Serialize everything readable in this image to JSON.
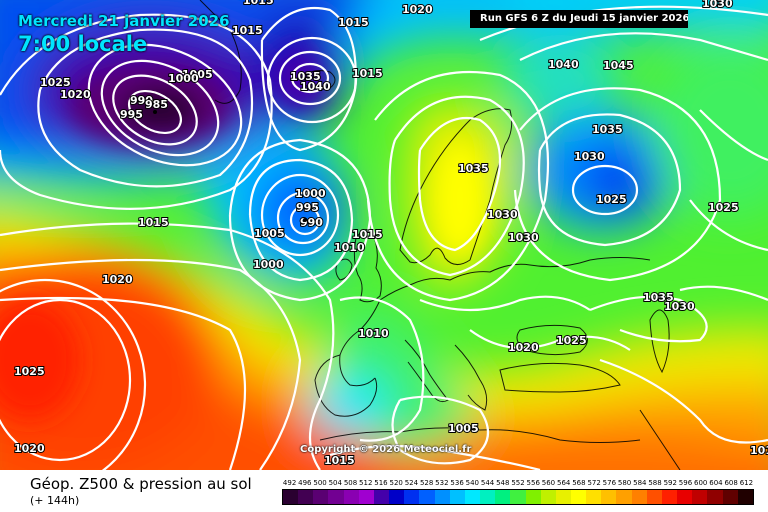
{
  "header": {
    "valid_date": "Mercredi 21 janvier 2026",
    "local_time": "7:00 locale",
    "run_info": "Run GFS 6 Z du Jeudi 15 janvier 2026"
  },
  "copyright": "Copyright © 2026 Meteociel.fr",
  "legend": {
    "title": "Géop. Z500 & pression au sol",
    "subtitle": "(+ 144h)",
    "scale_values": [
      "492",
      "496",
      "500",
      "504",
      "508",
      "512",
      "516",
      "520",
      "524",
      "528",
      "532",
      "536",
      "540",
      "544",
      "548",
      "552",
      "556",
      "560",
      "564",
      "568",
      "572",
      "576",
      "580",
      "584",
      "588",
      "592",
      "596",
      "600",
      "604",
      "608",
      "612"
    ],
    "scale_colors": [
      "#2a0030",
      "#420052",
      "#5a0072",
      "#720092",
      "#8a00b2",
      "#a000d0",
      "#4400aa",
      "#0000c8",
      "#0030f0",
      "#0060ff",
      "#0090ff",
      "#00c0ff",
      "#00e8ff",
      "#00f0c0",
      "#00f080",
      "#40f040",
      "#80f000",
      "#c0f000",
      "#e8f000",
      "#ffff00",
      "#ffe000",
      "#ffc000",
      "#ffa000",
      "#ff8000",
      "#ff5000",
      "#ff2000",
      "#e80000",
      "#c00000",
      "#900000",
      "#600000",
      "#200000"
    ]
  },
  "pressure_labels": [
    {
      "text": "1015",
      "id": "p1015-nw"
    },
    {
      "text": "1025",
      "id": "p1025-nw"
    },
    {
      "text": "1020",
      "id": "p1020-nw"
    },
    {
      "text": "1005",
      "id": "p1005-icel"
    },
    {
      "text": "1000",
      "id": "p1000-icel"
    },
    {
      "text": "990",
      "id": "p990-icel"
    },
    {
      "text": "985",
      "id": "p985-icel"
    },
    {
      "text": "995",
      "id": "p995-icel"
    },
    {
      "text": "1015",
      "id": "p1015-top"
    },
    {
      "text": "1015",
      "id": "p1015-top2"
    },
    {
      "text": "1020",
      "id": "p1020-top"
    },
    {
      "text": "1035",
      "id": "p1035-greenl"
    },
    {
      "text": "1040",
      "id": "p1040-greenl"
    },
    {
      "text": "1015",
      "id": "p1015-greenl"
    },
    {
      "text": "1040",
      "id": "p1040-ne"
    },
    {
      "text": "1045",
      "id": "p1045-ne"
    },
    {
      "text": "1030",
      "id": "p1030-top-right"
    },
    {
      "text": "1035",
      "id": "p1035-russia"
    },
    {
      "text": "1030",
      "id": "p1030-russia"
    },
    {
      "text": "1025",
      "id": "p1025-russia"
    },
    {
      "text": "1025",
      "id": "p1025-east"
    },
    {
      "text": "1035",
      "id": "p1035-scand"
    },
    {
      "text": "1030",
      "id": "p1030-scand"
    },
    {
      "text": "1030",
      "id": "p1030-baltic"
    },
    {
      "text": "1000",
      "id": "p1000-low"
    },
    {
      "text": "995",
      "id": "p995-low"
    },
    {
      "text": "990",
      "id": "p990-low"
    },
    {
      "text": "1005",
      "id": "p1005-low"
    },
    {
      "text": "1000",
      "id": "p1000-low2"
    },
    {
      "text": "1010",
      "id": "p1010-uk"
    },
    {
      "text": "1015",
      "id": "p1015-uk"
    },
    {
      "text": "1015",
      "id": "p1015-atl"
    },
    {
      "text": "1020",
      "id": "p1020-atl"
    },
    {
      "text": "1025",
      "id": "p1025-sw"
    },
    {
      "text": "1020",
      "id": "p1020-sw"
    },
    {
      "text": "1010",
      "id": "p1010-france"
    },
    {
      "text": "1020",
      "id": "p1020-balkan"
    },
    {
      "text": "1025",
      "id": "p1025-balkan"
    },
    {
      "text": "1035",
      "id": "p1035-caspian"
    },
    {
      "text": "1030",
      "id": "p1030-caspian"
    },
    {
      "text": "1005",
      "id": "p1005-med"
    },
    {
      "text": "1015",
      "id": "p1015-africa"
    },
    {
      "text": "101",
      "id": "p101-edge"
    }
  ]
}
